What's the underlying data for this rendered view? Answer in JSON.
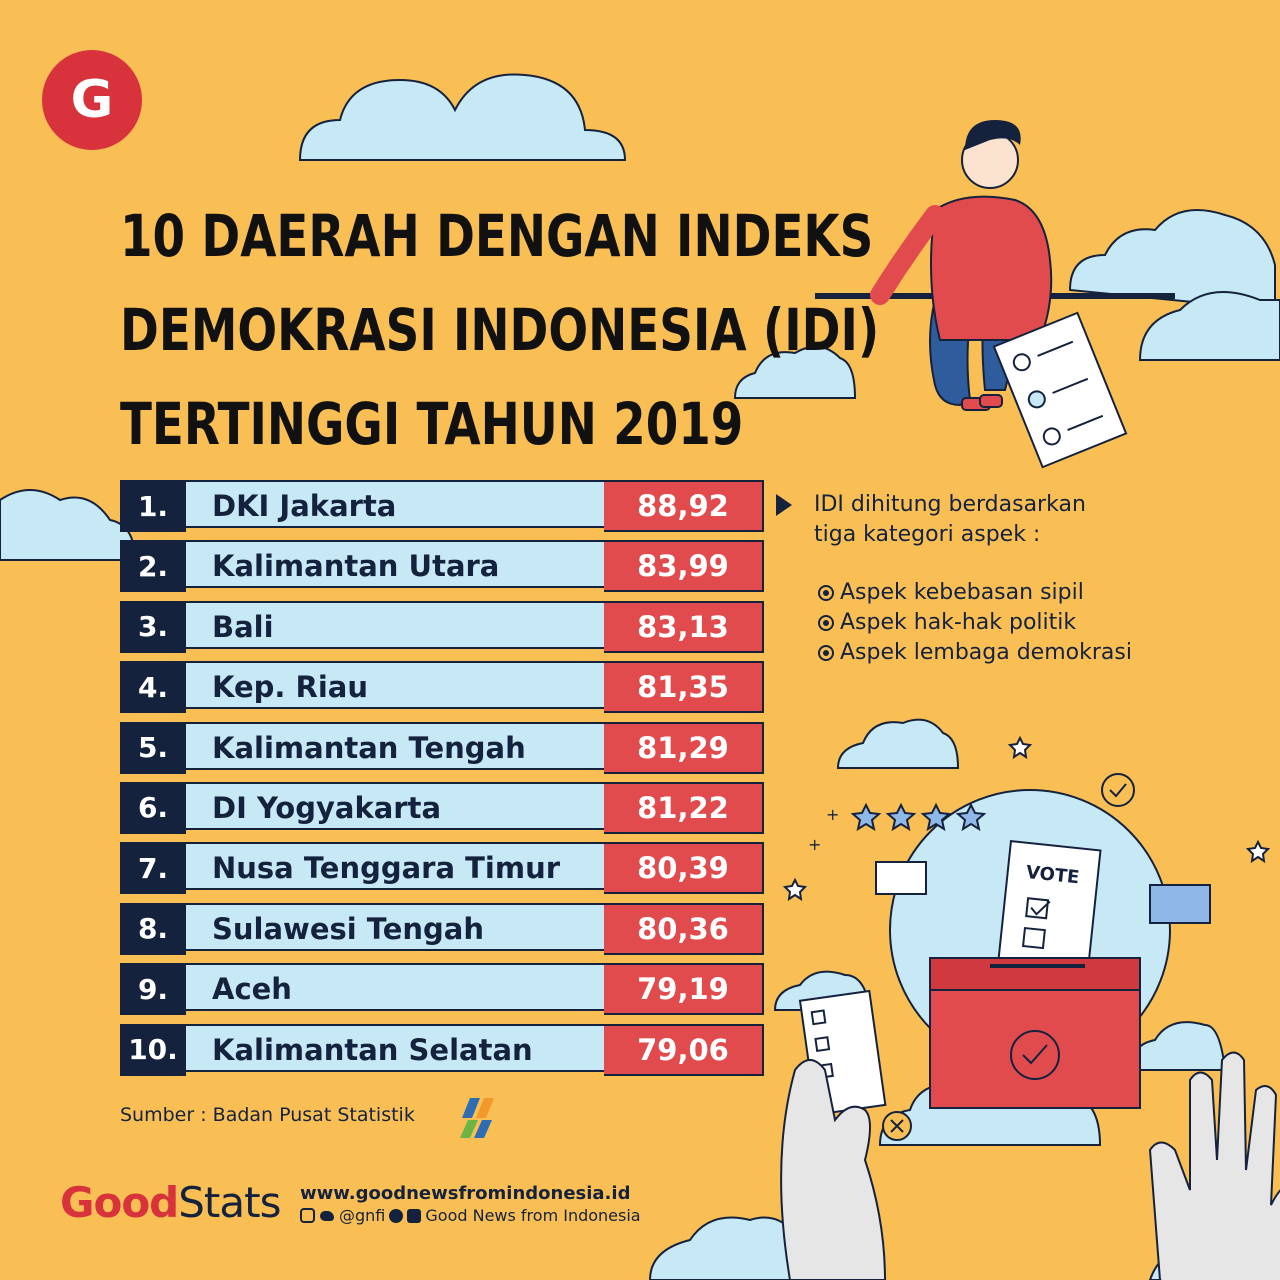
{
  "header": {
    "title_lines": [
      "10 DAERAH DENGAN INDEKS",
      "DEMOKRASI INDONESIA (IDI)",
      "TERTINGGI TAHUN 2019"
    ]
  },
  "brand_logo_letter": "G",
  "colors": {
    "background": "#F9BF55",
    "rank_cell": "#15223D",
    "name_cell": "#C7E8F5",
    "value_cell": "#E14B4E",
    "brand_red": "#D8323C"
  },
  "chart_data": {
    "type": "table",
    "title": "10 DAERAH DENGAN INDEKS DEMOKRASI INDONESIA (IDI) TERTINGGI TAHUN 2019",
    "rows": [
      {
        "rank": "1.",
        "region": "DKI Jakarta",
        "value": "88,92"
      },
      {
        "rank": "2.",
        "region": "Kalimantan Utara",
        "value": "83,99"
      },
      {
        "rank": "3.",
        "region": "Bali",
        "value": "83,13"
      },
      {
        "rank": "4.",
        "region": "Kep. Riau",
        "value": "81,35"
      },
      {
        "rank": "5.",
        "region": "Kalimantan Tengah",
        "value": "81,29"
      },
      {
        "rank": "6.",
        "region": "DI Yogyakarta",
        "value": "81,22"
      },
      {
        "rank": "7.",
        "region": "Nusa Tenggara Timur",
        "value": "80,39"
      },
      {
        "rank": "8.",
        "region": "Sulawesi Tengah",
        "value": "80,36"
      },
      {
        "rank": "9.",
        "region": "Aceh",
        "value": "79,19"
      },
      {
        "rank": "10.",
        "region": "Kalimantan Selatan",
        "value": "79,06"
      }
    ]
  },
  "note": {
    "intro_line1": "IDI dihitung berdasarkan",
    "intro_line2": "tiga kategori aspek :",
    "aspects": [
      "Aspek kebebasan sipil",
      "Aspek hak-hak politik",
      "Aspek lembaga demokrasi"
    ]
  },
  "illustration": {
    "ballot_label": "VOTE"
  },
  "source": "Sumber : Badan Pusat Statistik",
  "footer": {
    "brand_good": "Good",
    "brand_stats": "Stats",
    "website": "www.goodnewsfromindonesia.id",
    "handle": "@gnfi",
    "page_name": "Good News from Indonesia"
  }
}
